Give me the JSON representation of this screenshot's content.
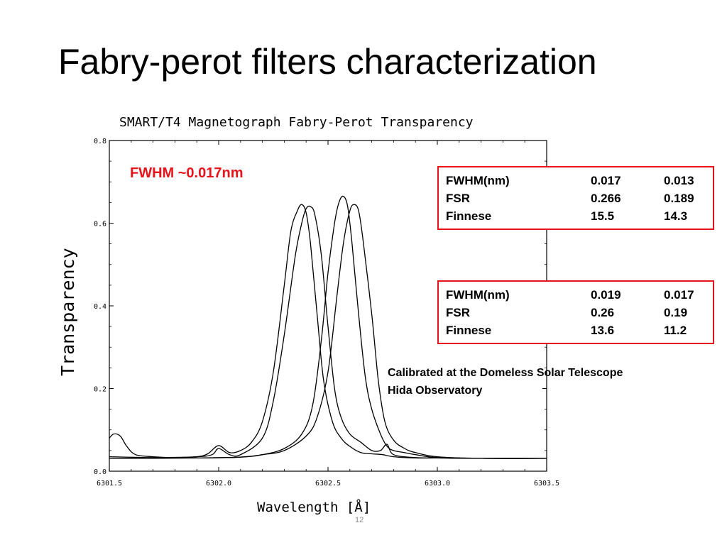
{
  "slide": {
    "title": "Fabry-perot filters characterization",
    "page_number": "12"
  },
  "annotations": {
    "fwhm": "FWHM ~0.017nm",
    "calibration_line1": "Calibrated at the Domeless Solar Telescope",
    "calibration_line2": "Hida Observatory"
  },
  "parameter_boxes": [
    {
      "rows": [
        {
          "name": "FWHM(nm)",
          "v1": "0.017",
          "v2": "0.013"
        },
        {
          "name": "FSR",
          "v1": "0.266",
          "v2": "0.189"
        },
        {
          "name": "Finnese",
          "v1": "15.5",
          "v2": "14.3"
        }
      ]
    },
    {
      "rows": [
        {
          "name": "FWHM(nm)",
          "v1": "0.019",
          "v2": "0.017"
        },
        {
          "name": "FSR",
          "v1": "0.26",
          "v2": "0.19"
        },
        {
          "name": "Finnese",
          "v1": "13.6",
          "v2": "11.2"
        }
      ]
    }
  ],
  "colors": {
    "accent_red": "#e8121b",
    "curve": "#000000",
    "page_number": "#8a8a8a"
  },
  "chart_data": {
    "type": "line",
    "title": "SMART/T4 Magnetograph Fabry-Perot Transparency",
    "xlabel": "Wavelength [Å]",
    "ylabel": "Transparency",
    "xlim": [
      6301.5,
      6303.5
    ],
    "ylim": [
      0.0,
      0.8
    ],
    "x_ticks": [
      "6301.5",
      "6302.0",
      "6302.5",
      "6303.0",
      "6303.5"
    ],
    "y_ticks": [
      "0.0",
      "0.2",
      "0.4",
      "0.6",
      "0.8"
    ],
    "grid": false,
    "series": [
      {
        "x": [
          6301.5,
          6301.52,
          6301.55,
          6301.58,
          6301.62,
          6301.7,
          6301.8,
          6301.9,
          6301.95,
          6302.0,
          6302.05,
          6302.1,
          6302.15,
          6302.2,
          6302.25,
          6302.3,
          6302.33,
          6302.36,
          6302.38,
          6302.4,
          6302.42,
          6302.45,
          6302.48,
          6302.52,
          6302.56,
          6302.6,
          6302.65,
          6302.7,
          6302.75,
          6302.8,
          6302.9,
          6303.0,
          6303.2,
          6303.5
        ],
        "values": [
          0.08,
          0.09,
          0.085,
          0.06,
          0.04,
          0.035,
          0.033,
          0.035,
          0.042,
          0.062,
          0.045,
          0.05,
          0.07,
          0.12,
          0.24,
          0.45,
          0.58,
          0.63,
          0.645,
          0.625,
          0.55,
          0.38,
          0.22,
          0.12,
          0.08,
          0.06,
          0.045,
          0.042,
          0.04,
          0.035,
          0.032,
          0.032,
          0.031,
          0.031
        ]
      },
      {
        "x": [
          6301.5,
          6301.7,
          6301.9,
          6301.97,
          6302.0,
          6302.05,
          6302.1,
          6302.2,
          6302.25,
          6302.3,
          6302.35,
          6302.38,
          6302.4,
          6302.42,
          6302.44,
          6302.47,
          6302.5,
          6302.53,
          6302.56,
          6302.6,
          6302.65,
          6302.7,
          6302.74,
          6302.77,
          6302.8,
          6302.9,
          6303.0,
          6303.2,
          6303.5
        ],
        "values": [
          0.035,
          0.033,
          0.035,
          0.04,
          0.055,
          0.04,
          0.04,
          0.08,
          0.17,
          0.33,
          0.52,
          0.6,
          0.635,
          0.64,
          0.62,
          0.52,
          0.35,
          0.2,
          0.13,
          0.09,
          0.07,
          0.05,
          0.05,
          0.065,
          0.04,
          0.033,
          0.032,
          0.031,
          0.031
        ]
      },
      {
        "x": [
          6301.5,
          6301.9,
          6302.1,
          6302.2,
          6302.3,
          6302.38,
          6302.43,
          6302.47,
          6302.5,
          6302.53,
          6302.55,
          6302.57,
          6302.59,
          6302.61,
          6302.64,
          6302.67,
          6302.7,
          6302.74,
          6302.77,
          6302.8,
          6302.85,
          6302.9,
          6303.0,
          6303.2,
          6303.5
        ],
        "values": [
          0.031,
          0.032,
          0.034,
          0.04,
          0.055,
          0.09,
          0.16,
          0.32,
          0.48,
          0.6,
          0.65,
          0.665,
          0.64,
          0.55,
          0.38,
          0.23,
          0.15,
          0.09,
          0.06,
          0.05,
          0.045,
          0.04,
          0.033,
          0.031,
          0.031
        ]
      },
      {
        "x": [
          6301.5,
          6301.9,
          6302.1,
          6302.2,
          6302.3,
          6302.4,
          6302.45,
          6302.5,
          6302.54,
          6302.57,
          6302.6,
          6302.62,
          6302.64,
          6302.66,
          6302.7,
          6302.73,
          6302.76,
          6302.8,
          6302.85,
          6302.9,
          6303.0,
          6303.2,
          6303.5
        ],
        "values": [
          0.031,
          0.032,
          0.034,
          0.04,
          0.05,
          0.085,
          0.13,
          0.24,
          0.42,
          0.55,
          0.63,
          0.645,
          0.63,
          0.56,
          0.38,
          0.22,
          0.12,
          0.075,
          0.055,
          0.045,
          0.035,
          0.031,
          0.031
        ]
      }
    ]
  }
}
